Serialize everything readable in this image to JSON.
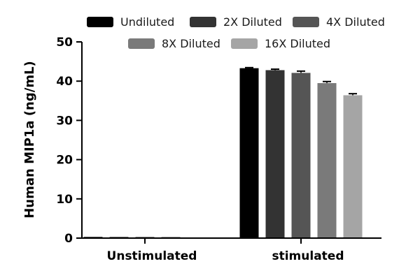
{
  "chart_data": {
    "type": "bar",
    "ylabel": "Human MIP1a (ng/mL)",
    "xlabel": "",
    "ylim": [
      0,
      50
    ],
    "yticks": [
      0,
      10,
      20,
      30,
      40,
      50
    ],
    "categories": [
      "Unstimulated",
      "stimulated"
    ],
    "series": [
      {
        "name": "Undiluted",
        "color": "#000000",
        "values": [
          0.3,
          43.3
        ],
        "errors": [
          0.05,
          0.15
        ]
      },
      {
        "name": "2X Diluted",
        "color": "#333333",
        "values": [
          0.3,
          42.8
        ],
        "errors": [
          0.05,
          0.25
        ]
      },
      {
        "name": "4X Diluted",
        "color": "#555555",
        "values": [
          0.3,
          42.1
        ],
        "errors": [
          0.05,
          0.45
        ]
      },
      {
        "name": "8X Diluted",
        "color": "#7a7a7a",
        "values": [
          0.3,
          39.5
        ],
        "errors": [
          0.05,
          0.4
        ]
      },
      {
        "name": "16X Diluted",
        "color": "#a5a5a5",
        "values": [
          0,
          36.4
        ],
        "errors": [
          0,
          0.4
        ]
      }
    ],
    "legend_position": "top",
    "grid": false
  }
}
